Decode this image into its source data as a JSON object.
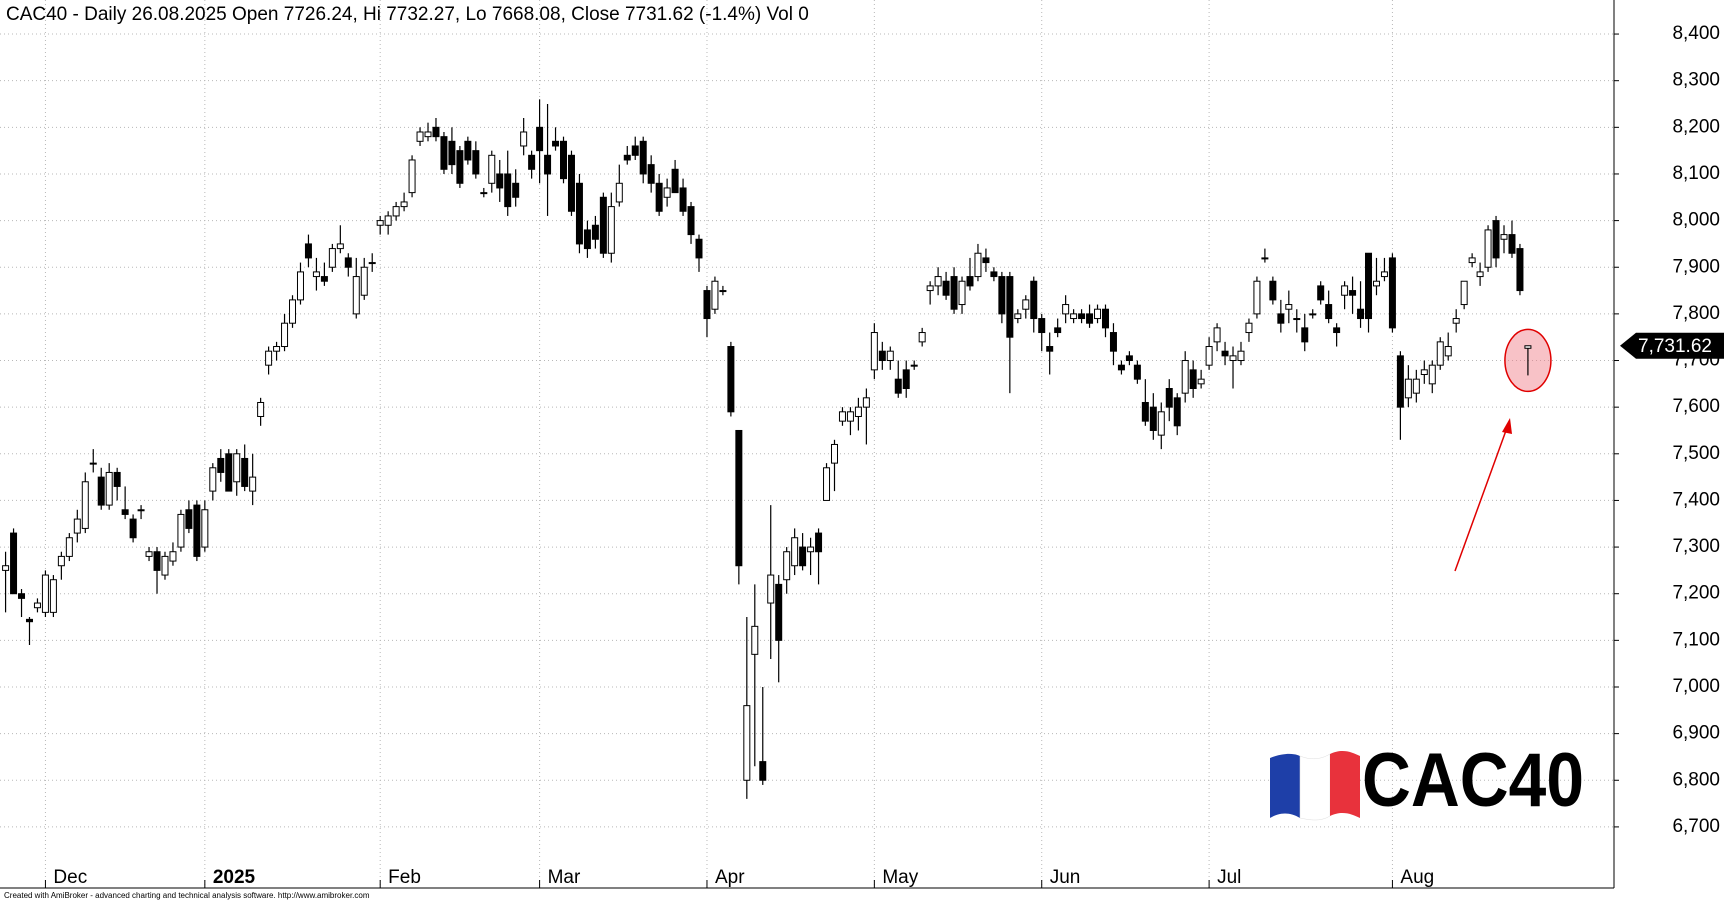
{
  "chart_data": {
    "type": "candlestick",
    "title": "CAC40 - Daily 26.08.2025 Open 7726.24, Hi 7732.27, Lo 7668.08, Close 7731.62 (-1.4%) Vol 0",
    "footer": "Created with AmiBroker - advanced charting and technical analysis software. http://www.amibroker.com",
    "logo": "CAC40",
    "up_color": "#ffffff",
    "down_color": "#000000",
    "grid": true,
    "x": [
      0,
      1,
      2,
      3,
      4,
      5,
      6,
      7,
      8,
      9,
      10,
      11,
      12,
      13,
      14,
      15,
      16,
      17,
      18,
      19,
      20,
      21,
      22,
      23,
      24,
      25,
      26,
      27,
      28,
      29,
      30,
      31,
      32,
      33,
      34,
      35,
      36,
      37,
      38,
      39,
      40,
      41,
      42,
      43,
      44,
      45,
      46,
      47,
      48,
      49,
      50,
      51,
      52,
      53,
      54,
      55,
      56,
      57,
      58,
      59,
      60,
      61,
      62,
      63,
      64,
      65,
      66,
      67,
      68,
      69,
      70,
      71,
      72,
      73,
      74,
      75,
      76,
      77,
      78,
      79,
      80,
      81,
      82,
      83,
      84,
      85,
      86,
      87,
      88,
      89,
      90,
      91,
      92,
      93,
      94,
      95,
      96,
      97,
      98,
      99,
      100,
      101,
      102,
      103,
      104,
      105,
      106,
      107,
      108,
      109,
      110,
      111,
      112,
      113,
      114,
      115,
      116,
      117,
      118,
      119,
      120,
      121,
      122,
      123,
      124,
      125,
      126,
      127,
      128,
      129,
      130,
      131,
      132,
      133,
      134,
      135,
      136,
      137,
      138,
      139,
      140,
      141,
      142,
      143,
      144,
      145,
      146,
      147,
      148,
      149,
      150,
      151,
      152,
      153,
      154,
      155,
      156,
      157,
      158,
      159,
      160,
      161,
      162,
      163,
      164,
      165,
      166,
      167,
      168,
      169,
      170,
      171,
      172,
      173,
      174,
      175,
      176,
      177,
      178,
      179,
      180,
      181,
      182,
      183,
      184,
      185,
      186,
      187,
      188,
      189,
      190,
      191
    ],
    "open": [
      7250,
      7330,
      7200,
      7145,
      7170,
      7160,
      7160,
      7260,
      7280,
      7330,
      7340,
      7480,
      7450,
      7390,
      7460,
      7380,
      7360,
      7380,
      7280,
      7290,
      7240,
      7270,
      7300,
      7380,
      7390,
      7300,
      7420,
      7490,
      7500,
      7440,
      7490,
      7420,
      7580,
      7690,
      7720,
      7730,
      7780,
      7830,
      7950,
      7880,
      7880,
      7900,
      7940,
      7920,
      7800,
      7840,
      7910,
      7990,
      7990,
      8010,
      8030,
      8060,
      8170,
      8180,
      8200,
      8180,
      8170,
      8150,
      8170,
      8150,
      8060,
      8080,
      8100,
      8100,
      8080,
      8160,
      8140,
      8200,
      8140,
      8170,
      8170,
      8140,
      8080,
      7980,
      7990,
      8050,
      7930,
      8040,
      8140,
      8160,
      8170,
      8120,
      8080,
      8050,
      8110,
      8070,
      8030,
      7960,
      7850,
      7810,
      7850,
      7730,
      7550,
      6800,
      7070,
      6840,
      7180,
      7220,
      7230,
      7260,
      7300,
      7290,
      7330,
      7400,
      7480,
      7570,
      7570,
      7580,
      7600,
      7680,
      7720,
      7700,
      7660,
      7680,
      7690,
      7740,
      7850,
      7860,
      7870,
      7880,
      7820,
      7880,
      7880,
      7920,
      7890,
      7880,
      7880,
      7790,
      7810,
      7870,
      7790,
      7730,
      7770,
      7800,
      7790,
      7800,
      7800,
      7790,
      7810,
      7760,
      7690,
      7710,
      7690,
      7610,
      7600,
      7540,
      7640,
      7620,
      7630,
      7680,
      7650,
      7690,
      7740,
      7720,
      7700,
      7700,
      7760,
      7800,
      7920,
      7870,
      7800,
      7810,
      7790,
      7770,
      7800,
      7860,
      7820,
      7770,
      7840,
      7850,
      7810,
      7930,
      7860,
      7880,
      7920,
      7710,
      7620,
      7630,
      7670,
      7650,
      7690,
      7710,
      7780,
      7820,
      7910,
      7880,
      7900,
      8000,
      7960,
      7970,
      7940,
      7726.24
    ],
    "high": [
      7290,
      7340,
      7210,
      7150,
      7190,
      7250,
      7240,
      7290,
      7330,
      7380,
      7460,
      7510,
      7470,
      7480,
      7470,
      7430,
      7370,
      7390,
      7300,
      7300,
      7290,
      7310,
      7380,
      7400,
      7400,
      7400,
      7480,
      7510,
      7510,
      7510,
      7520,
      7500,
      7620,
      7730,
      7740,
      7800,
      7840,
      7910,
      7970,
      7920,
      7910,
      7950,
      7990,
      7930,
      7920,
      7920,
      7930,
      8010,
      8020,
      8040,
      8060,
      8140,
      8200,
      8210,
      8220,
      8190,
      8200,
      8160,
      8180,
      8170,
      8070,
      8150,
      8130,
      8150,
      8110,
      8220,
      8150,
      8260,
      8250,
      8200,
      8180,
      8150,
      8100,
      8000,
      8010,
      8060,
      8060,
      8120,
      8160,
      8180,
      8180,
      8140,
      8100,
      8090,
      8130,
      8090,
      8040,
      7970,
      7860,
      7880,
      7860,
      7740,
      7550,
      7150,
      7220,
      7000,
      7390,
      7240,
      7300,
      7340,
      7330,
      7320,
      7340,
      7480,
      7530,
      7600,
      7600,
      7620,
      7640,
      7780,
      7740,
      7730,
      7700,
      7700,
      7700,
      7770,
      7870,
      7900,
      7890,
      7900,
      7880,
      7920,
      7950,
      7940,
      7900,
      7890,
      7890,
      7810,
      7840,
      7880,
      7800,
      7760,
      7790,
      7840,
      7810,
      7810,
      7820,
      7820,
      7820,
      7780,
      7700,
      7720,
      7700,
      7660,
      7630,
      7610,
      7660,
      7630,
      7720,
      7700,
      7680,
      7750,
      7780,
      7740,
      7730,
      7740,
      7790,
      7880,
      7940,
      7880,
      7830,
      7850,
      7810,
      7800,
      7810,
      7870,
      7850,
      7780,
      7870,
      7880,
      7870,
      7930,
      7920,
      7920,
      7930,
      7720,
      7690,
      7680,
      7700,
      7700,
      7750,
      7760,
      7810,
      7870,
      7930,
      7910,
      7990,
      8010,
      7990,
      8000,
      7950,
      7732.27
    ],
    "low": [
      7160,
      7200,
      7150,
      7090,
      7160,
      7150,
      7150,
      7230,
      7270,
      7310,
      7330,
      7460,
      7380,
      7380,
      7400,
      7360,
      7310,
      7360,
      7270,
      7200,
      7230,
      7260,
      7290,
      7330,
      7270,
      7290,
      7400,
      7440,
      7430,
      7410,
      7420,
      7390,
      7560,
      7670,
      7700,
      7720,
      7770,
      7820,
      7900,
      7850,
      7860,
      7890,
      7930,
      7880,
      7790,
      7830,
      7890,
      7970,
      7970,
      8000,
      8020,
      8050,
      8160,
      8170,
      8170,
      8100,
      8100,
      8070,
      8120,
      8090,
      8050,
      8060,
      8040,
      8010,
      8030,
      8140,
      8090,
      8080,
      8010,
      8150,
      8080,
      8010,
      7930,
      7920,
      7940,
      7920,
      7910,
      8030,
      8120,
      8130,
      8080,
      8060,
      8010,
      8030,
      8060,
      8010,
      7950,
      7890,
      7750,
      7800,
      7840,
      7580,
      7220,
      6760,
      6830,
      6790,
      7060,
      7010,
      7200,
      7240,
      7250,
      7240,
      7220,
      7400,
      7420,
      7560,
      7540,
      7550,
      7520,
      7660,
      7680,
      7680,
      7620,
      7620,
      7680,
      7730,
      7820,
      7840,
      7830,
      7800,
      7800,
      7850,
      7870,
      7890,
      7870,
      7780,
      7630,
      7780,
      7790,
      7760,
      7720,
      7670,
      7750,
      7780,
      7780,
      7780,
      7770,
      7780,
      7750,
      7690,
      7670,
      7690,
      7650,
      7560,
      7530,
      7510,
      7570,
      7540,
      7610,
      7620,
      7640,
      7680,
      7720,
      7690,
      7640,
      7690,
      7740,
      7790,
      7910,
      7820,
      7760,
      7780,
      7760,
      7720,
      7790,
      7820,
      7780,
      7730,
      7810,
      7800,
      7770,
      7760,
      7840,
      7870,
      7760,
      7530,
      7600,
      7610,
      7650,
      7630,
      7680,
      7700,
      7760,
      7810,
      7900,
      7860,
      7890,
      7900,
      7930,
      7920,
      7840,
      7668.08
    ],
    "close": [
      7260,
      7200,
      7190,
      7140,
      7180,
      7240,
      7230,
      7280,
      7320,
      7360,
      7440,
      7480,
      7390,
      7460,
      7430,
      7370,
      7320,
      7380,
      7290,
      7250,
      7280,
      7290,
      7370,
      7340,
      7280,
      7380,
      7470,
      7460,
      7420,
      7500,
      7430,
      7450,
      7610,
      7720,
      7730,
      7780,
      7830,
      7890,
      7920,
      7890,
      7870,
      7940,
      7950,
      7900,
      7880,
      7900,
      7910,
      8000,
      8010,
      8030,
      8040,
      8130,
      8190,
      8190,
      8180,
      8110,
      8120,
      8080,
      8130,
      8100,
      8060,
      8140,
      8070,
      8030,
      8050,
      8190,
      8110,
      8150,
      8100,
      8160,
      8090,
      8020,
      7950,
      7940,
      7960,
      7930,
      8030,
      8080,
      8130,
      8140,
      8100,
      8080,
      8020,
      8070,
      8060,
      8020,
      7970,
      7920,
      7790,
      7870,
      7850,
      7590,
      7260,
      6960,
      7130,
      6800,
      7240,
      7100,
      7290,
      7320,
      7260,
      7300,
      7290,
      7470,
      7520,
      7590,
      7590,
      7600,
      7620,
      7760,
      7700,
      7720,
      7630,
      7640,
      7690,
      7760,
      7860,
      7880,
      7840,
      7810,
      7870,
      7860,
      7930,
      7910,
      7880,
      7800,
      7750,
      7800,
      7830,
      7790,
      7760,
      7720,
      7760,
      7820,
      7800,
      7790,
      7780,
      7810,
      7770,
      7720,
      7680,
      7700,
      7660,
      7570,
      7550,
      7590,
      7600,
      7560,
      7700,
      7640,
      7660,
      7730,
      7770,
      7710,
      7710,
      7720,
      7780,
      7870,
      7920,
      7830,
      7780,
      7820,
      7790,
      7740,
      7800,
      7830,
      7790,
      7760,
      7860,
      7840,
      7790,
      7790,
      7870,
      7890,
      7770,
      7600,
      7660,
      7660,
      7680,
      7690,
      7740,
      7730,
      7790,
      7870,
      7920,
      7890,
      7980,
      7920,
      7970,
      7930,
      7850,
      7731.62
    ],
    "xlim": [
      -0.7,
      201.8
    ],
    "xticks": [
      {
        "value": 5,
        "label": "Dec"
      },
      {
        "value": 25,
        "label": "2025"
      },
      {
        "value": 47,
        "label": "Feb"
      },
      {
        "value": 67,
        "label": "Mar"
      },
      {
        "value": 88,
        "label": "Apr"
      },
      {
        "value": 109,
        "label": "May"
      },
      {
        "value": 130,
        "label": "Jun"
      },
      {
        "value": 151,
        "label": "Jul"
      },
      {
        "value": 174,
        "label": "Aug"
      }
    ],
    "ylim": [
      6569,
      8473
    ],
    "yticks": [
      {
        "value": 6700,
        "label": "6,700"
      },
      {
        "value": 6800,
        "label": "6,800"
      },
      {
        "value": 6900,
        "label": "6,900"
      },
      {
        "value": 7000,
        "label": "7,000"
      },
      {
        "value": 7100,
        "label": "7,100"
      },
      {
        "value": 7200,
        "label": "7,200"
      },
      {
        "value": 7300,
        "label": "7,300"
      },
      {
        "value": 7400,
        "label": "7,400"
      },
      {
        "value": 7500,
        "label": "7,500"
      },
      {
        "value": 7600,
        "label": "7,600"
      },
      {
        "value": 7700,
        "label": "7,700"
      },
      {
        "value": 7800,
        "label": "7,800"
      },
      {
        "value": 7900,
        "label": "7,900"
      },
      {
        "value": 8000,
        "label": "8,000"
      },
      {
        "value": 8100,
        "label": "8,100"
      },
      {
        "value": 8200,
        "label": "8,200"
      },
      {
        "value": 8300,
        "label": "8,300"
      },
      {
        "value": 8400,
        "label": "8,400"
      }
    ],
    "price_tag": {
      "value": 7731.62,
      "label": "7,731.62"
    }
  }
}
